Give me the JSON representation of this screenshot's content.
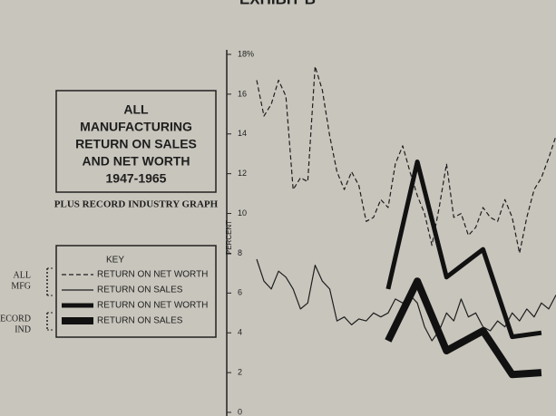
{
  "chart_data": {
    "type": "line",
    "title": "EXHIBIT B",
    "box_title": [
      "ALL",
      "MANUFACTURING",
      "RETURN ON SALES",
      "AND NET WORTH",
      "1947-1965"
    ],
    "subtitle": "PLUS RECORD INDUSTRY GRAPH",
    "y_label": "PERCENT",
    "legend_title": "KEY",
    "legend_groups": [
      [
        "ALL",
        "MFG"
      ],
      [
        "RECORD",
        "IND"
      ]
    ],
    "ylim": [
      0,
      18
    ],
    "yticks": [
      0,
      2,
      4,
      6,
      8,
      10,
      12,
      14,
      16,
      {
        "value": 18,
        "label": "18%"
      }
    ],
    "series": [
      {
        "name": "RETURN ON NET WORTH",
        "color": "#1e1e1e",
        "style": "dashed",
        "weight": "thin",
        "values": [
          16.7,
          14.9,
          15.5,
          16.7,
          15.9,
          11.2,
          11.8,
          11.6,
          17.4,
          16.2,
          13.9,
          12.1,
          11.2,
          12.1,
          11.4,
          9.6,
          9.8,
          10.7,
          10.3,
          12.5,
          13.4,
          12.1,
          10.9,
          10.0,
          8.4,
          10.3,
          12.5,
          9.8,
          10.0,
          8.9,
          9.3,
          10.3,
          9.8,
          9.6,
          10.7,
          9.8,
          8.0,
          9.8,
          11.2,
          11.8,
          12.8,
          13.9
        ]
      },
      {
        "name": "RETURN ON SALES",
        "color": "#1e1e1e",
        "style": "solid",
        "weight": "thin",
        "values": [
          7.7,
          6.6,
          6.2,
          7.1,
          6.8,
          6.2,
          5.2,
          5.5,
          7.4,
          6.6,
          6.2,
          4.6,
          4.8,
          4.4,
          4.7,
          4.6,
          5.0,
          4.8,
          5.0,
          5.7,
          5.5,
          5.9,
          5.5,
          4.3,
          3.6,
          4.1,
          5.0,
          4.6,
          5.7,
          4.8,
          5.0,
          4.3,
          4.1,
          4.6,
          4.3,
          5.0,
          4.6,
          5.2,
          4.8,
          5.5,
          5.2,
          5.9
        ]
      },
      {
        "name": "RETURN ON NET WORTH",
        "color": "#111111",
        "style": "solid",
        "weight": "thick",
        "values": [
          null,
          null,
          null,
          null,
          null,
          null,
          null,
          null,
          null,
          null,
          null,
          null,
          null,
          null,
          null,
          null,
          null,
          null,
          6.2,
          null,
          null,
          null,
          12.6,
          null,
          null,
          null,
          6.8,
          null,
          null,
          null,
          null,
          8.2,
          null,
          null,
          null,
          3.8,
          null,
          null,
          null,
          4.0,
          null,
          null
        ]
      },
      {
        "name": "RETURN ON SALES",
        "color": "#111111",
        "style": "solid",
        "weight": "heavy",
        "values": [
          null,
          null,
          null,
          null,
          null,
          null,
          null,
          null,
          null,
          null,
          null,
          null,
          null,
          null,
          null,
          null,
          null,
          null,
          3.6,
          null,
          null,
          null,
          6.6,
          null,
          null,
          null,
          3.1,
          null,
          null,
          null,
          null,
          4.1,
          null,
          null,
          null,
          1.9,
          null,
          null,
          null,
          2.0,
          null,
          null
        ]
      }
    ]
  }
}
